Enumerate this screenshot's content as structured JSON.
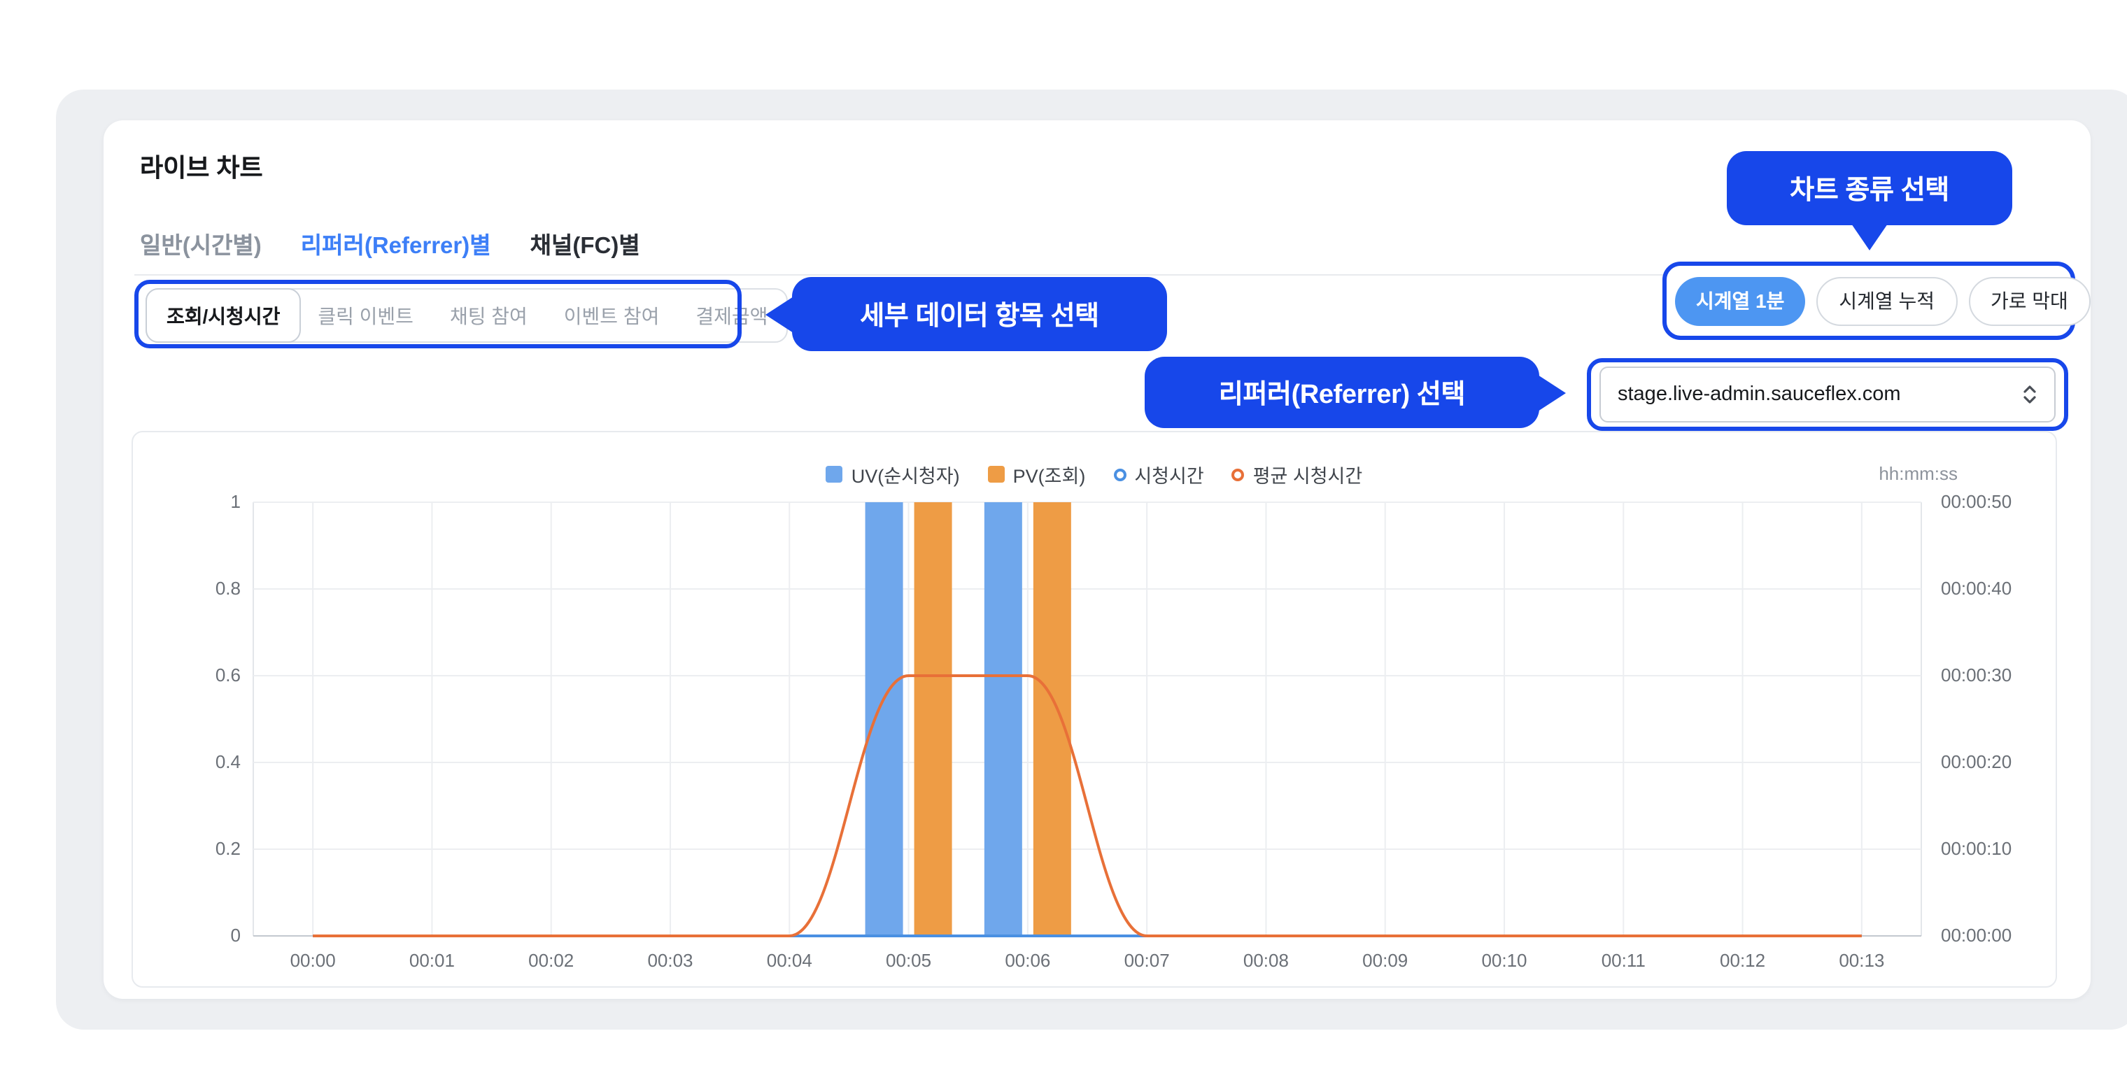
{
  "colors": {
    "annotation_blue": "#1747EA",
    "tab_active_blue": "#3D7FF7",
    "pill_active_blue": "#4D96F2",
    "bar_uv_blue": "#6FA7EC",
    "bar_pv_orange": "#EE9C45",
    "line_watch_blue": "#4A90E2",
    "line_avg_orange": "#E87038"
  },
  "page": {
    "title": "라이브 차트"
  },
  "tabs": {
    "items": [
      {
        "label": "일반(시간별)",
        "active": false
      },
      {
        "label": "리퍼러(Referrer)별",
        "active": true
      },
      {
        "label": "채널(FC)별",
        "active": false
      }
    ]
  },
  "metric_tabs": {
    "items": [
      {
        "label": "조회/시청시간",
        "active": true
      },
      {
        "label": "클릭 이벤트",
        "active": false
      },
      {
        "label": "채팅 참여",
        "active": false
      },
      {
        "label": "이벤트 참여",
        "active": false
      },
      {
        "label": "결제금액",
        "active": false
      }
    ]
  },
  "chart_type_buttons": {
    "items": [
      {
        "label": "시계열 1분",
        "active": true
      },
      {
        "label": "시계열 누적",
        "active": false
      },
      {
        "label": "가로 막대",
        "active": false
      }
    ]
  },
  "referrer_select": {
    "value": "stage.live-admin.sauceflex.com"
  },
  "annotations": {
    "metric_callout": "세부 데이터 항목 선택",
    "chart_type_callout": "차트 종류 선택",
    "referrer_callout": "리퍼러(Referrer) 선택"
  },
  "chart_data": {
    "type": "mixed",
    "unit_label": "hh:mm:ss",
    "categories": [
      "00:00",
      "00:01",
      "00:02",
      "00:03",
      "00:04",
      "00:05",
      "00:06",
      "00:07",
      "00:08",
      "00:09",
      "00:10",
      "00:11",
      "00:12",
      "00:13"
    ],
    "left_axis": {
      "min": 0,
      "max": 1,
      "tick_step": 0.2,
      "tick_labels": [
        "0",
        "0.2",
        "0.4",
        "0.6",
        "0.8",
        "1"
      ]
    },
    "right_axis": {
      "min": 0,
      "max": 50,
      "tick_labels": [
        "00:00:00",
        "00:00:10",
        "00:00:20",
        "00:00:30",
        "00:00:40",
        "00:00:50"
      ]
    },
    "legend_position": "top-center",
    "grid": true,
    "series": [
      {
        "name": "UV(순시청자)",
        "type": "bar",
        "axis": "left",
        "color": "#6FA7EC",
        "values": [
          0,
          0,
          0,
          0,
          0,
          1,
          1,
          0,
          0,
          0,
          0,
          0,
          0,
          0
        ]
      },
      {
        "name": "PV(조회)",
        "type": "bar",
        "axis": "left",
        "color": "#EE9C45",
        "values": [
          0,
          0,
          0,
          0,
          0,
          1,
          1,
          0,
          0,
          0,
          0,
          0,
          0,
          0
        ]
      },
      {
        "name": "시청시간",
        "type": "line",
        "axis": "right",
        "color": "#4A90E2",
        "values": [
          0,
          0,
          0,
          0,
          0,
          0,
          0,
          0,
          0,
          0,
          0,
          0,
          0,
          0
        ]
      },
      {
        "name": "평균 시청시간",
        "type": "line",
        "axis": "right",
        "color": "#E87038",
        "values": [
          0,
          0,
          0,
          0,
          0,
          30,
          30,
          0,
          0,
          0,
          0,
          0,
          0,
          0
        ]
      }
    ]
  }
}
